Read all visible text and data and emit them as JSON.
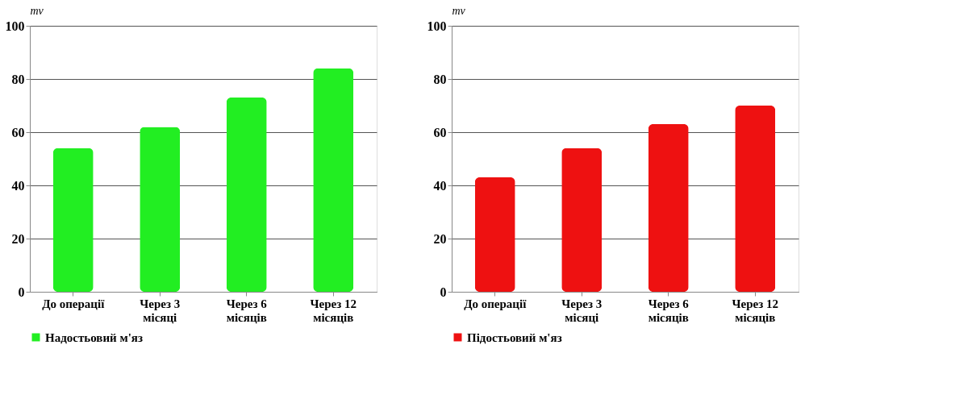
{
  "chart_data": [
    {
      "type": "bar",
      "ylabel": "mv",
      "categories": [
        "До операції",
        "Через 3 місяці",
        "Через 6 місяців",
        "Через 12 місяців"
      ],
      "series": [
        {
          "name": "Надостьовий м'яз",
          "color": "#22ee22",
          "values": [
            54,
            62,
            73,
            84
          ]
        }
      ],
      "ylim": [
        0,
        100
      ],
      "yticks": [
        0,
        20,
        40,
        60,
        80,
        100
      ],
      "grid": "y",
      "legend": "bottom left"
    },
    {
      "type": "bar",
      "ylabel": "mv",
      "categories": [
        "До операції",
        "Через 3 місяці",
        "Через 6 місяців",
        "Через 12 місяців"
      ],
      "series": [
        {
          "name": "Підостьовий м'яз",
          "color": "#ee1111",
          "values": [
            43,
            54,
            63,
            70
          ]
        }
      ],
      "ylim": [
        0,
        100
      ],
      "yticks": [
        0,
        20,
        40,
        60,
        80,
        100
      ],
      "grid": "y",
      "legend": "bottom left"
    }
  ]
}
